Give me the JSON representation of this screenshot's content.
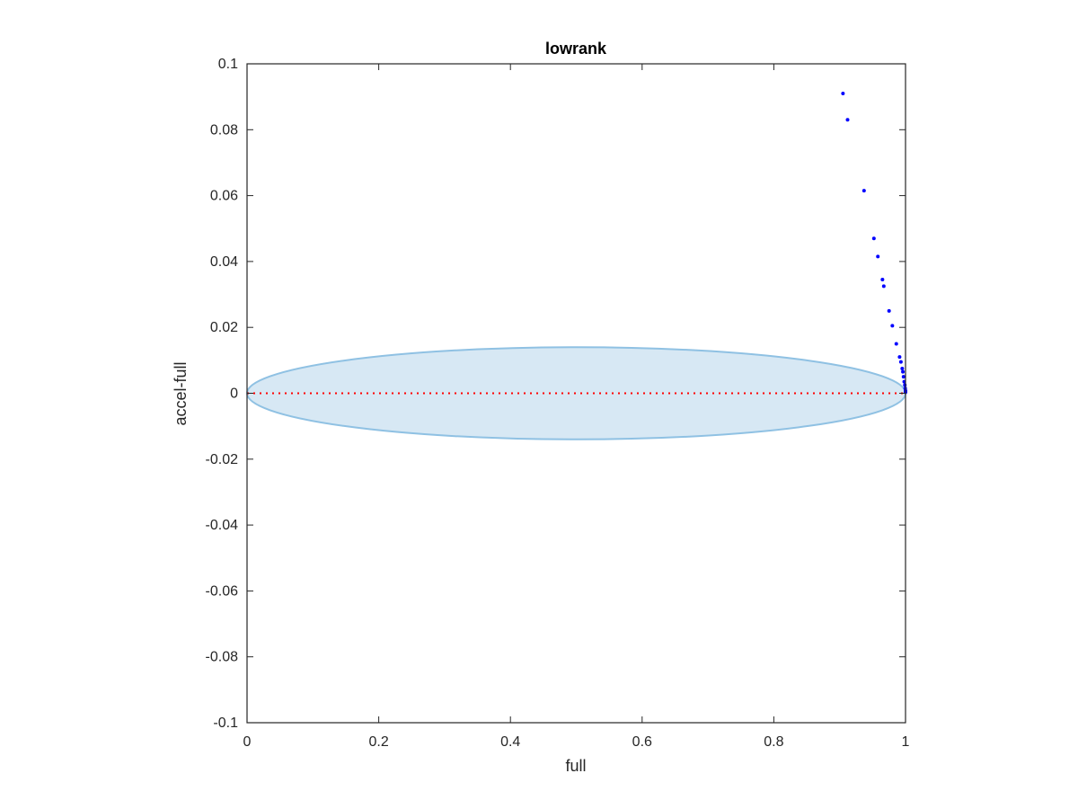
{
  "chart_data": {
    "type": "scatter",
    "title": "lowrank",
    "xlabel": "full",
    "ylabel": "accel-full",
    "xlim": [
      0,
      1
    ],
    "ylim": [
      -0.1,
      0.1
    ],
    "xticks": [
      "0",
      "0.2",
      "0.4",
      "0.6",
      "0.8",
      "1"
    ],
    "yticks": [
      "-0.1",
      "-0.08",
      "-0.06",
      "-0.04",
      "-0.02",
      "0",
      "0.02",
      "0.04",
      "0.06",
      "0.08",
      "0.1"
    ],
    "grid": false,
    "legend": "none",
    "points": [
      {
        "x": 0.905,
        "y": 0.091
      },
      {
        "x": 0.912,
        "y": 0.083
      },
      {
        "x": 0.937,
        "y": 0.0615
      },
      {
        "x": 0.952,
        "y": 0.047
      },
      {
        "x": 0.958,
        "y": 0.0415
      },
      {
        "x": 0.965,
        "y": 0.0345
      },
      {
        "x": 0.967,
        "y": 0.0325
      },
      {
        "x": 0.975,
        "y": 0.025
      },
      {
        "x": 0.98,
        "y": 0.0205
      },
      {
        "x": 0.986,
        "y": 0.015
      },
      {
        "x": 0.991,
        "y": 0.011
      },
      {
        "x": 0.993,
        "y": 0.0095
      },
      {
        "x": 0.995,
        "y": 0.0075
      },
      {
        "x": 0.996,
        "y": 0.0065
      },
      {
        "x": 0.997,
        "y": 0.005
      },
      {
        "x": 0.998,
        "y": 0.0035
      },
      {
        "x": 0.999,
        "y": 0.0025
      },
      {
        "x": 0.9995,
        "y": 0.0015
      },
      {
        "x": 1.0,
        "y": 0.0008
      },
      {
        "x": 1.0,
        "y": 0.0003
      }
    ],
    "reference_line": {
      "y": 0,
      "x_from": 0,
      "x_to": 1
    },
    "ellipse": {
      "cx": 0.5,
      "cy": 0,
      "rx": 0.5,
      "ry": 0.014
    },
    "colors": {
      "points": "#0000ff",
      "reference_line": "#ff0000",
      "ellipse_fill": "#d7e8f4",
      "ellipse_stroke": "#8fc1e3",
      "axes": "#262626"
    }
  }
}
